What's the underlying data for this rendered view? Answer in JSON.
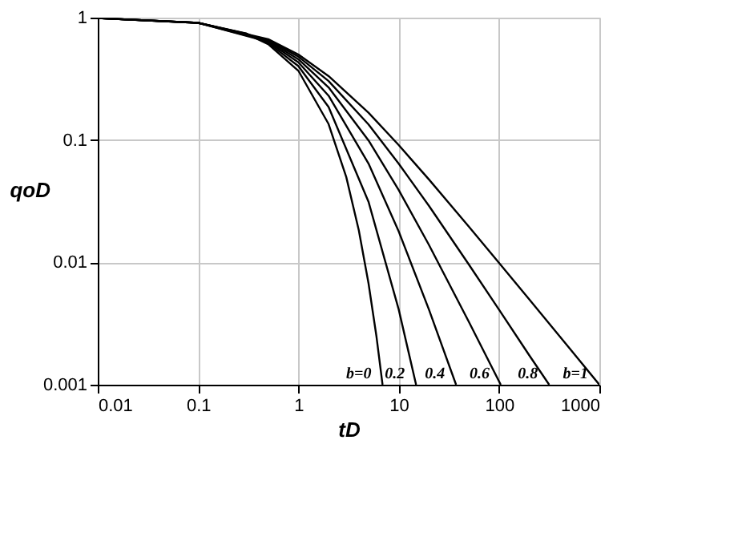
{
  "chart_data": {
    "type": "line",
    "xlabel": "tD",
    "ylabel": "qoD",
    "log": "xy",
    "grid": true,
    "marker": "none",
    "line_style": "solid",
    "xlim": [
      0.01,
      1000
    ],
    "xticks": [
      0.01,
      0.1,
      1,
      10,
      100,
      1000
    ],
    "ylim": [
      0.001,
      1
    ],
    "yticks": [
      0.001,
      0.01,
      0.1,
      1
    ],
    "series": [
      {
        "name": "b=0",
        "color": "#000000",
        "x": [
          0.01,
          0.1,
          0.3,
          0.5,
          1,
          2,
          3,
          4,
          5,
          6,
          6.9
        ],
        "values": [
          0.99,
          0.905,
          0.741,
          0.607,
          0.368,
          0.135,
          0.0498,
          0.0183,
          0.00674,
          0.00248,
          0.001
        ]
      },
      {
        "name": "0.2",
        "color": "#000000",
        "x": [
          0.01,
          0.1,
          0.3,
          0.5,
          1,
          2,
          5,
          10,
          14.9
        ],
        "values": [
          0.99,
          0.906,
          0.744,
          0.621,
          0.402,
          0.186,
          0.0313,
          0.00412,
          0.001
        ]
      },
      {
        "name": "0.4",
        "color": "#000000",
        "x": [
          0.01,
          0.1,
          0.5,
          1,
          2,
          5,
          10,
          20,
          37.3
        ],
        "values": [
          0.99,
          0.907,
          0.634,
          0.431,
          0.23,
          0.0642,
          0.0179,
          0.00412,
          0.001
        ]
      },
      {
        "name": "0.6",
        "color": "#000000",
        "x": [
          0.01,
          0.1,
          0.5,
          1,
          2,
          5,
          10,
          20,
          50,
          104
        ],
        "values": [
          0.99,
          0.907,
          0.646,
          0.457,
          0.269,
          0.0992,
          0.039,
          0.0139,
          0.00327,
          0.001
        ]
      },
      {
        "name": "0.8",
        "color": "#000000",
        "x": [
          0.01,
          0.1,
          0.5,
          1,
          2,
          5,
          10,
          20,
          50,
          100,
          200,
          316
        ],
        "values": [
          0.99,
          0.908,
          0.657,
          0.48,
          0.303,
          0.134,
          0.064,
          0.029,
          0.0096,
          0.0041,
          0.00174,
          0.001
        ]
      },
      {
        "name": "b=1",
        "color": "#000000",
        "x": [
          0.01,
          0.1,
          0.5,
          1,
          2,
          5,
          10,
          20,
          50,
          100,
          200,
          500,
          1000
        ],
        "values": [
          0.99,
          0.909,
          0.667,
          0.5,
          0.333,
          0.167,
          0.0909,
          0.0476,
          0.0196,
          0.0099,
          0.00498,
          0.002,
          0.001
        ]
      }
    ]
  }
}
